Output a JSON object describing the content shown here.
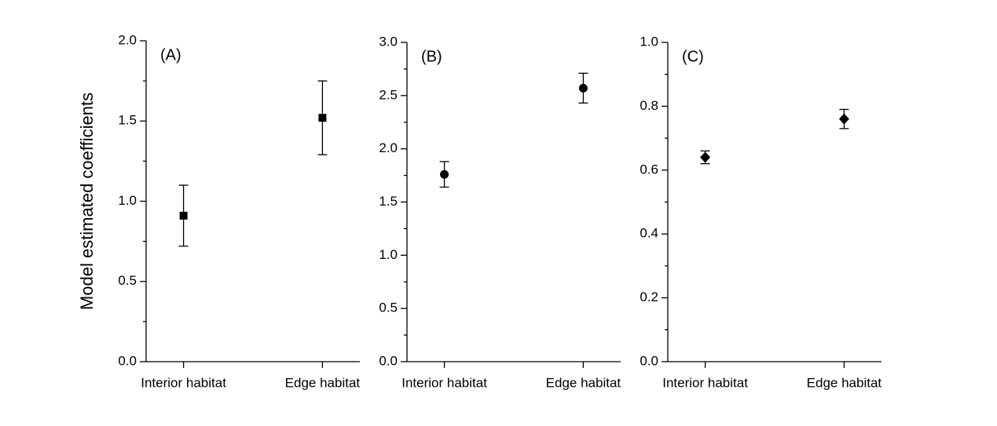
{
  "chart_data": [
    {
      "type": "errorbar",
      "panel_label": "(A)",
      "ylabel": "Model estimated coefficients",
      "categories": [
        "Interior habitat",
        "Edge habitat"
      ],
      "values": [
        0.91,
        1.52
      ],
      "errors": [
        0.19,
        0.23
      ],
      "marker": "square",
      "color": "#000000",
      "ylim": [
        0,
        2
      ],
      "yticks": [
        {
          "value": 0,
          "label": "0.0"
        },
        0.5,
        {
          "value": 1,
          "label": "1.0"
        },
        1.5,
        {
          "value": 2,
          "label": "2.0"
        }
      ],
      "yminorticks": [
        0.25,
        0.75,
        1.25,
        1.75
      ]
    },
    {
      "type": "errorbar",
      "panel_label": "(B)",
      "categories": [
        "Interior habitat",
        "Edge habitat"
      ],
      "values": [
        1.76,
        2.57
      ],
      "errors": [
        0.12,
        0.14
      ],
      "marker": "circle",
      "color": "#000000",
      "ylim": [
        0,
        3
      ],
      "yticks": [
        {
          "value": 0,
          "label": "0.0"
        },
        0.5,
        {
          "value": 1,
          "label": "1.0"
        },
        1.5,
        {
          "value": 2,
          "label": "2.0"
        },
        2.5,
        {
          "value": 3,
          "label": "3.0"
        }
      ],
      "yminorticks": [
        0.25,
        0.75,
        1.25,
        1.75,
        2.25,
        2.75
      ]
    },
    {
      "type": "errorbar",
      "panel_label": "(C)",
      "categories": [
        "Interior habitat",
        "Edge habitat"
      ],
      "values": [
        0.64,
        0.76
      ],
      "errors": [
        0.02,
        0.03
      ],
      "marker": "diamond",
      "color": "#000000",
      "ylim": [
        0,
        1
      ],
      "yticks": [
        {
          "value": 0,
          "label": "0.0"
        },
        0.2,
        0.4,
        0.6,
        0.8,
        {
          "value": 1,
          "label": "1.0"
        }
      ],
      "yminorticks": [
        0.1,
        0.3,
        0.5,
        0.7,
        0.9
      ]
    }
  ]
}
